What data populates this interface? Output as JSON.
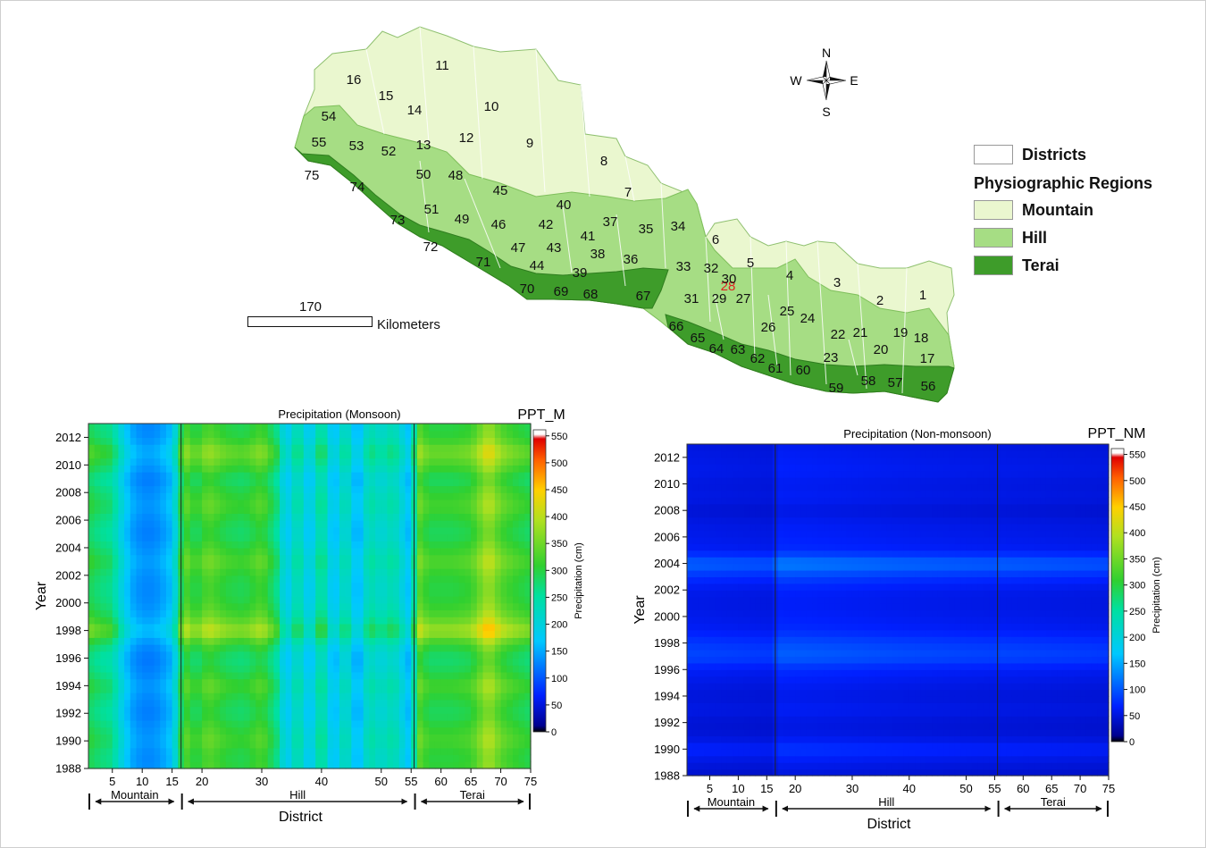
{
  "map": {
    "district_numbers": [
      "1",
      "2",
      "3",
      "4",
      "5",
      "6",
      "7",
      "8",
      "9",
      "10",
      "11",
      "12",
      "13",
      "14",
      "15",
      "16",
      "17",
      "18",
      "19",
      "20",
      "21",
      "22",
      "23",
      "24",
      "25",
      "26",
      "27",
      "28",
      "29",
      "30",
      "31",
      "32",
      "33",
      "34",
      "35",
      "36",
      "37",
      "38",
      "39",
      "40",
      "41",
      "42",
      "43",
      "44",
      "45",
      "46",
      "47",
      "48",
      "49",
      "50",
      "51",
      "52",
      "53",
      "54",
      "55",
      "56",
      "57",
      "58",
      "59",
      "60",
      "61",
      "62",
      "63",
      "64",
      "65",
      "66",
      "67",
      "68",
      "69",
      "70",
      "71",
      "72",
      "73",
      "74",
      "75"
    ],
    "highlight_district": "28",
    "compass": {
      "n": "N",
      "s": "S",
      "e": "E",
      "w": "W"
    },
    "scale": {
      "value": "170",
      "unit": "Kilometers"
    },
    "legend": {
      "districts": "Districts",
      "title": "Physiographic Regions",
      "items": [
        {
          "label": "Mountain",
          "color": "#eaf7cf"
        },
        {
          "label": "Hill",
          "color": "#a6dd84"
        },
        {
          "label": "Terai",
          "color": "#3e9c2a"
        }
      ]
    }
  },
  "colorbar_ticks": [
    "0",
    "50",
    "100",
    "150",
    "200",
    "250",
    "300",
    "350",
    "400",
    "450",
    "500",
    "550"
  ],
  "charts": [
    {
      "title": "Precipitation (Monsoon)",
      "corner_label": "PPT_M",
      "ylabel": "Year",
      "xlabel": "District",
      "colorbar_label": "Precipitation (cm)",
      "year_ticks": [
        "1988",
        "1990",
        "1992",
        "1994",
        "1996",
        "1998",
        "2000",
        "2002",
        "2004",
        "2006",
        "2008",
        "2010",
        "2012"
      ],
      "district_ticks": [
        "5",
        "10",
        "15",
        "20",
        "30",
        "40",
        "50",
        "55",
        "60",
        "65",
        "70",
        "75"
      ],
      "regions": [
        "Mountain",
        "Hill",
        "Terai"
      ]
    },
    {
      "title": "Precipitation (Non-monsoon)",
      "corner_label": "PPT_NM",
      "ylabel": "Year",
      "xlabel": "District",
      "colorbar_label": "Precipitation (cm)",
      "year_ticks": [
        "1988",
        "1990",
        "1992",
        "1994",
        "1996",
        "1998",
        "2000",
        "2002",
        "2004",
        "2006",
        "2008",
        "2010",
        "2012"
      ],
      "district_ticks": [
        "5",
        "10",
        "15",
        "20",
        "30",
        "40",
        "50",
        "55",
        "60",
        "65",
        "70",
        "75"
      ],
      "regions": [
        "Mountain",
        "Hill",
        "Terai"
      ]
    }
  ],
  "chart_data": [
    {
      "type": "heatmap",
      "title": "Precipitation (Monsoon)",
      "xlabel": "District",
      "ylabel": "Year",
      "colorbar_label": "Precipitation (cm)",
      "xlim": [
        1,
        75
      ],
      "ylim": [
        1988,
        2013
      ],
      "zlim": [
        0,
        550
      ],
      "x_groups": [
        {
          "name": "Mountain",
          "from": 1,
          "to": 16
        },
        {
          "name": "Hill",
          "from": 17,
          "to": 55
        },
        {
          "name": "Terai",
          "from": 56,
          "to": 75
        }
      ],
      "district_profile": [
        {
          "x": 1,
          "value": 290
        },
        {
          "x": 3,
          "value": 270
        },
        {
          "x": 5,
          "value": 260
        },
        {
          "x": 6,
          "value": 215
        },
        {
          "x": 7,
          "value": 180
        },
        {
          "x": 8,
          "value": 150
        },
        {
          "x": 10,
          "value": 130
        },
        {
          "x": 12,
          "value": 130
        },
        {
          "x": 14,
          "value": 150
        },
        {
          "x": 15,
          "value": 165
        },
        {
          "x": 16,
          "value": 240
        },
        {
          "x": 17,
          "value": 330
        },
        {
          "x": 19,
          "value": 290
        },
        {
          "x": 21,
          "value": 330
        },
        {
          "x": 24,
          "value": 300
        },
        {
          "x": 27,
          "value": 290
        },
        {
          "x": 30,
          "value": 320
        },
        {
          "x": 33,
          "value": 250
        },
        {
          "x": 34,
          "value": 160
        },
        {
          "x": 36,
          "value": 250
        },
        {
          "x": 38,
          "value": 160
        },
        {
          "x": 40,
          "value": 270
        },
        {
          "x": 42,
          "value": 150
        },
        {
          "x": 44,
          "value": 240
        },
        {
          "x": 46,
          "value": 140
        },
        {
          "x": 48,
          "value": 240
        },
        {
          "x": 50,
          "value": 210
        },
        {
          "x": 52,
          "value": 240
        },
        {
          "x": 54,
          "value": 180
        },
        {
          "x": 55,
          "value": 150
        },
        {
          "x": 56,
          "value": 340
        },
        {
          "x": 58,
          "value": 300
        },
        {
          "x": 60,
          "value": 300
        },
        {
          "x": 62,
          "value": 300
        },
        {
          "x": 65,
          "value": 310
        },
        {
          "x": 68,
          "value": 380
        },
        {
          "x": 70,
          "value": 330
        },
        {
          "x": 72,
          "value": 310
        },
        {
          "x": 75,
          "value": 290
        }
      ],
      "year_factor": [
        {
          "year": 1988,
          "factor": 1.0
        },
        {
          "year": 1989,
          "factor": 0.98
        },
        {
          "year": 1990,
          "factor": 1.05
        },
        {
          "year": 1991,
          "factor": 1.0
        },
        {
          "year": 1992,
          "factor": 0.93
        },
        {
          "year": 1993,
          "factor": 0.97
        },
        {
          "year": 1994,
          "factor": 1.05
        },
        {
          "year": 1995,
          "factor": 0.95
        },
        {
          "year": 1996,
          "factor": 0.9
        },
        {
          "year": 1997,
          "factor": 1.0
        },
        {
          "year": 1998,
          "factor": 1.25
        },
        {
          "year": 1999,
          "factor": 1.08
        },
        {
          "year": 2000,
          "factor": 1.0
        },
        {
          "year": 2001,
          "factor": 0.97
        },
        {
          "year": 2002,
          "factor": 1.0
        },
        {
          "year": 2003,
          "factor": 1.08
        },
        {
          "year": 2004,
          "factor": 1.0
        },
        {
          "year": 2005,
          "factor": 0.93
        },
        {
          "year": 2006,
          "factor": 0.97
        },
        {
          "year": 2007,
          "factor": 1.05
        },
        {
          "year": 2008,
          "factor": 1.0
        },
        {
          "year": 2009,
          "factor": 0.92
        },
        {
          "year": 2010,
          "factor": 1.05
        },
        {
          "year": 2011,
          "factor": 1.15
        },
        {
          "year": 2012,
          "factor": 1.0
        },
        {
          "year": 2013,
          "factor": 0.97
        }
      ]
    },
    {
      "type": "heatmap",
      "title": "Precipitation (Non-monsoon)",
      "xlabel": "District",
      "ylabel": "Year",
      "colorbar_label": "Precipitation (cm)",
      "xlim": [
        1,
        75
      ],
      "ylim": [
        1988,
        2013
      ],
      "zlim": [
        0,
        550
      ],
      "x_groups": [
        {
          "name": "Mountain",
          "from": 1,
          "to": 16
        },
        {
          "name": "Hill",
          "from": 17,
          "to": 55
        },
        {
          "name": "Terai",
          "from": 56,
          "to": 75
        }
      ],
      "district_profile": [
        {
          "x": 1,
          "value": 60
        },
        {
          "x": 16,
          "value": 55
        },
        {
          "x": 17,
          "value": 70
        },
        {
          "x": 40,
          "value": 62
        },
        {
          "x": 55,
          "value": 58
        },
        {
          "x": 56,
          "value": 60
        },
        {
          "x": 75,
          "value": 55
        }
      ],
      "year_factor": [
        {
          "year": 1988,
          "factor": 0.7
        },
        {
          "year": 1989,
          "factor": 0.85
        },
        {
          "year": 1990,
          "factor": 1.15
        },
        {
          "year": 1991,
          "factor": 0.8
        },
        {
          "year": 1992,
          "factor": 0.75
        },
        {
          "year": 1993,
          "factor": 0.9
        },
        {
          "year": 1994,
          "factor": 0.8
        },
        {
          "year": 1995,
          "factor": 0.9
        },
        {
          "year": 1996,
          "factor": 1.05
        },
        {
          "year": 1997,
          "factor": 1.5
        },
        {
          "year": 1998,
          "factor": 1.35
        },
        {
          "year": 1999,
          "factor": 1.05
        },
        {
          "year": 2000,
          "factor": 0.95
        },
        {
          "year": 2001,
          "factor": 0.9
        },
        {
          "year": 2002,
          "factor": 0.95
        },
        {
          "year": 2003,
          "factor": 1.25
        },
        {
          "year": 2004,
          "factor": 1.8
        },
        {
          "year": 2005,
          "factor": 1.05
        },
        {
          "year": 2006,
          "factor": 0.95
        },
        {
          "year": 2007,
          "factor": 0.9
        },
        {
          "year": 2008,
          "factor": 0.75
        },
        {
          "year": 2009,
          "factor": 0.9
        },
        {
          "year": 2010,
          "factor": 0.85
        },
        {
          "year": 2011,
          "factor": 0.95
        },
        {
          "year": 2012,
          "factor": 0.9
        },
        {
          "year": 2013,
          "factor": 0.85
        }
      ]
    }
  ]
}
